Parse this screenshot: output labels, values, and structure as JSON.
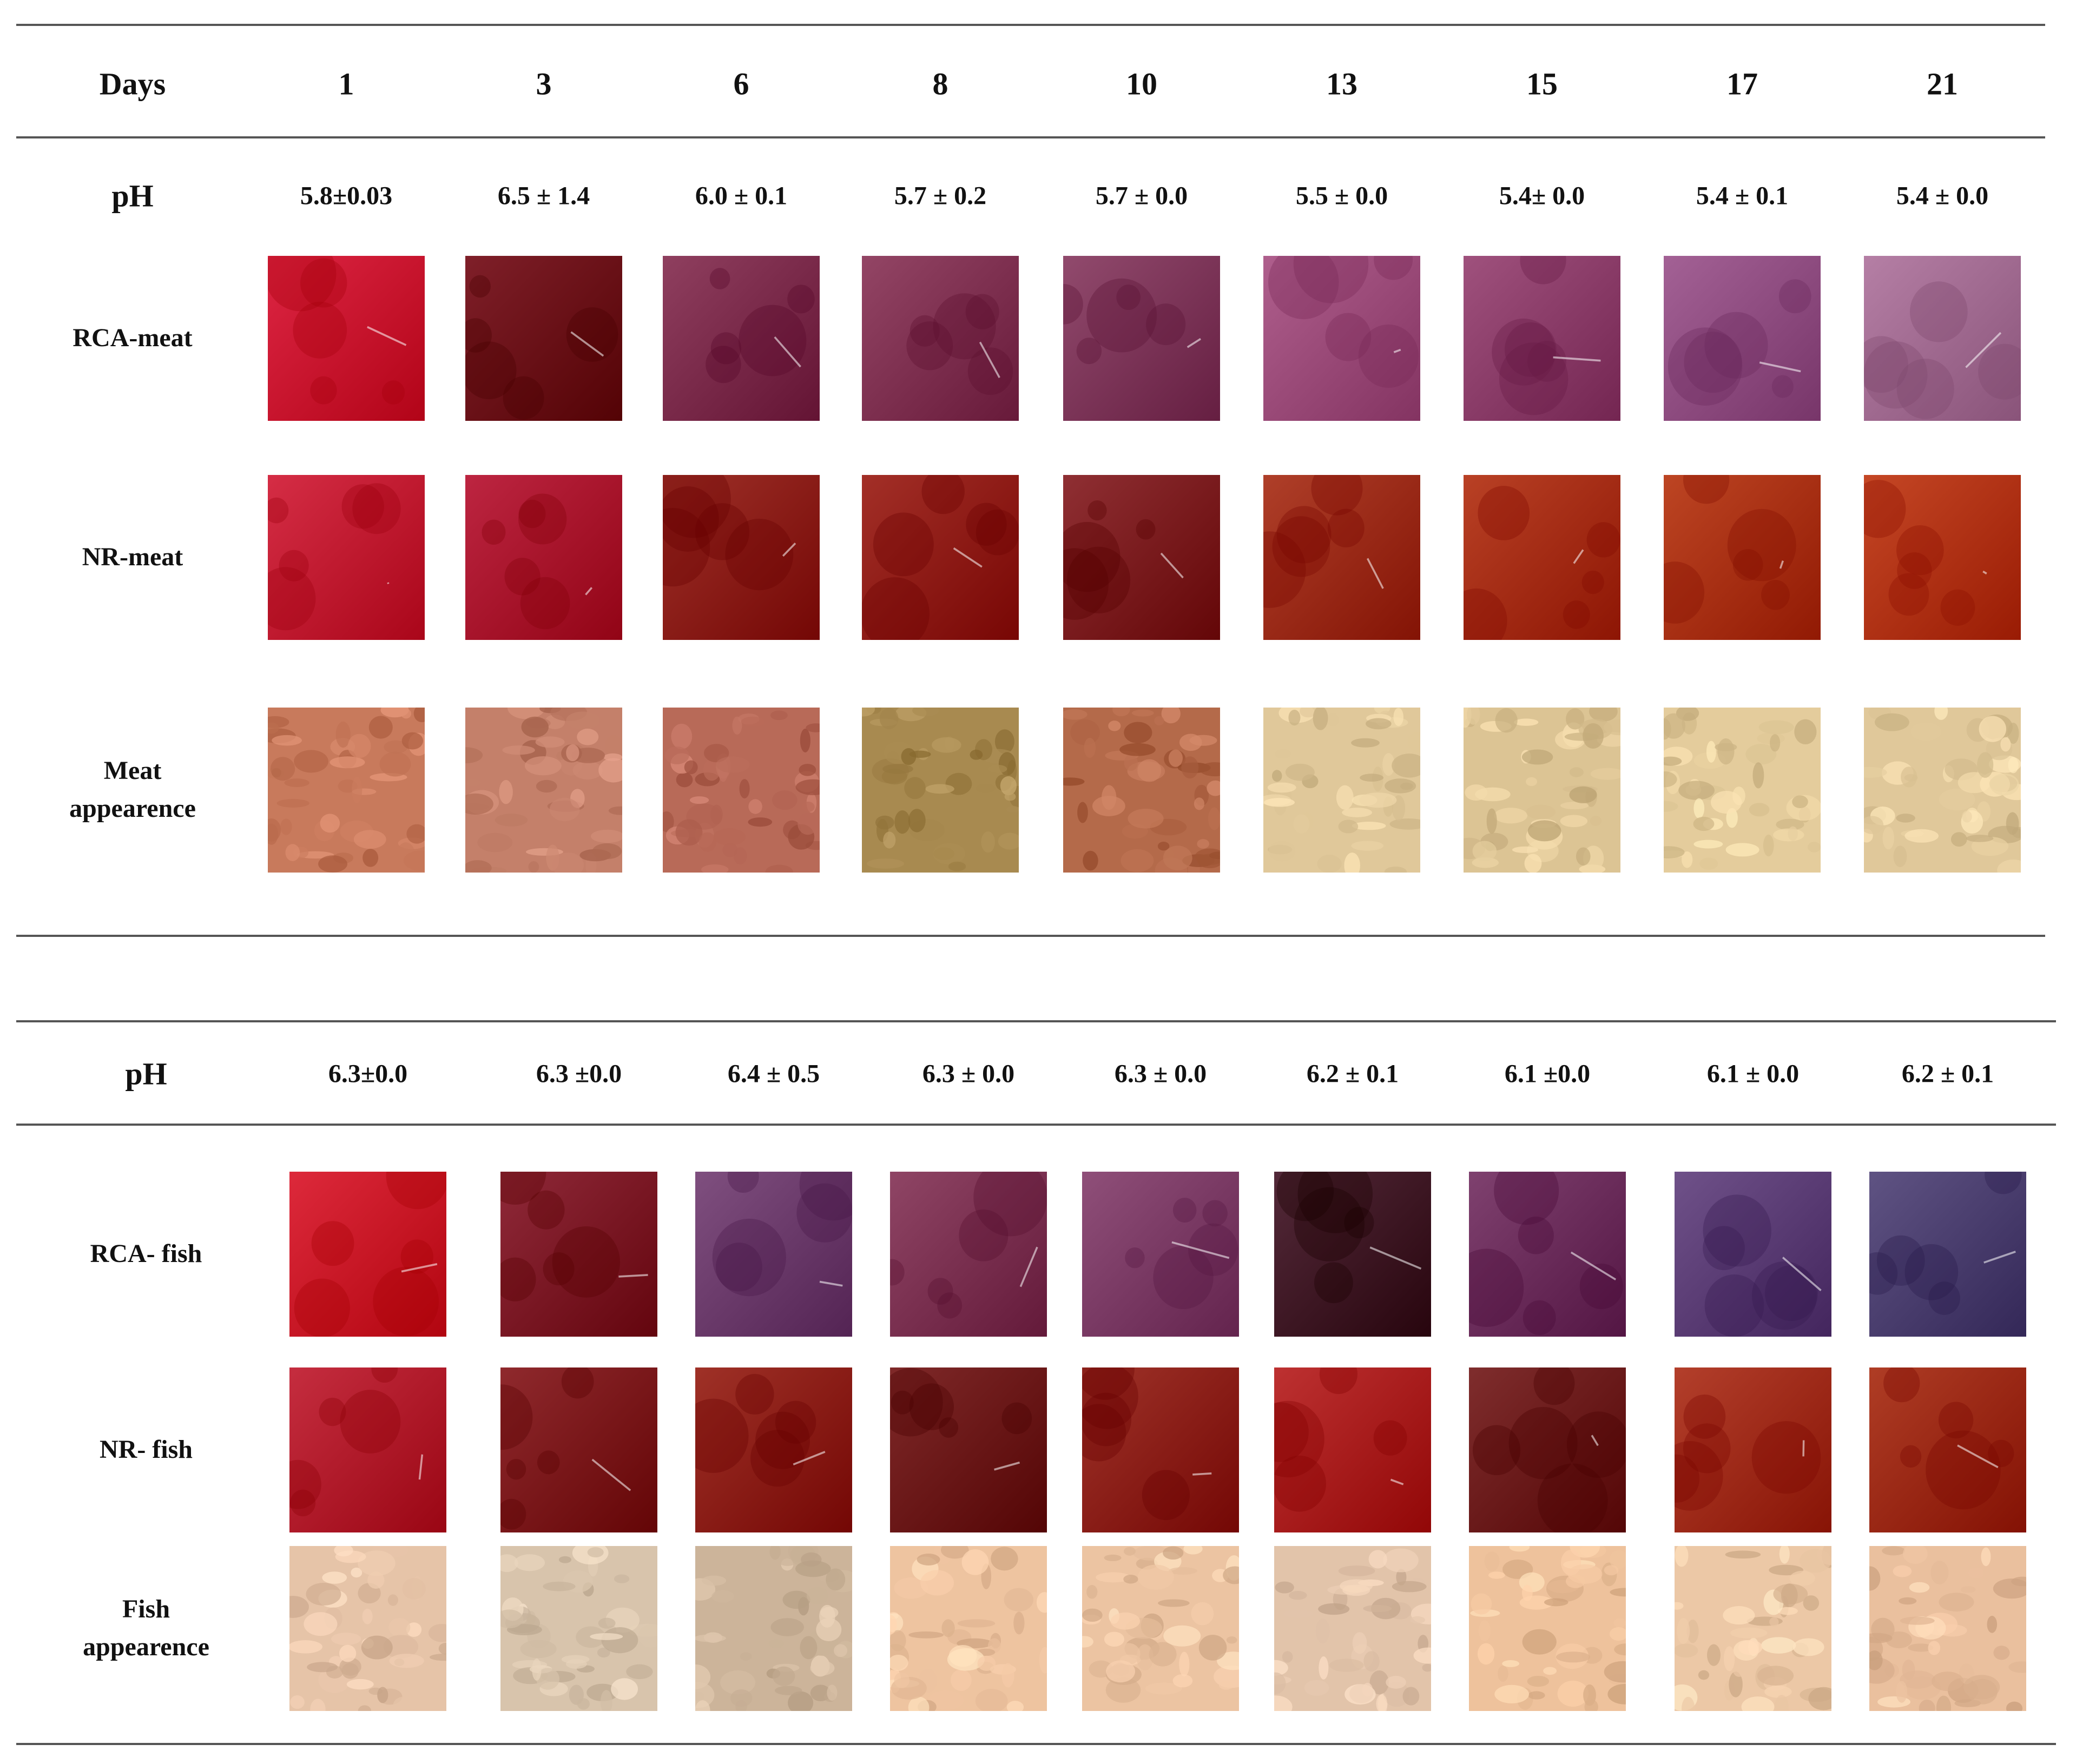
{
  "meat_table": {
    "header_label": "Days",
    "days": [
      "1",
      "3",
      "6",
      "8",
      "10",
      "13",
      "15",
      "17",
      "21"
    ],
    "ph_label": "pH",
    "ph_values": [
      "5.8±0.03",
      "6.5 ± 1.4",
      "6.0 ± 0.1",
      "5.7 ± 0.2",
      "5.7 ± 0.0",
      "5.5 ± 0.0",
      "5.4± 0.0",
      "5.4 ± 0.1",
      "5.4 ± 0.0"
    ],
    "rows": [
      {
        "label_lines": [
          "RCA-meat"
        ],
        "texture": "film",
        "colors": [
          "#c8102e",
          "#6a0a14",
          "#7a2a4a",
          "#7e3050",
          "#7c3558",
          "#9a4a78",
          "#8a3c68",
          "#8e4c80",
          "#a06a90"
        ]
      },
      {
        "label_lines": [
          "NR-meat"
        ],
        "texture": "film",
        "colors": [
          "#c01830",
          "#a8102c",
          "#8a1c14",
          "#8e1a12",
          "#7a1a1e",
          "#9a2a14",
          "#a42c10",
          "#a8300e",
          "#b03210"
        ]
      },
      {
        "label_lines": [
          "Meat",
          "appearence"
        ],
        "texture": "food",
        "colors": [
          "#c87a5c",
          "#c4806a",
          "#b86a58",
          "#a88a50",
          "#b46a4a",
          "#e0c89a",
          "#dcc494",
          "#e4cc9c",
          "#e0c89a"
        ]
      }
    ]
  },
  "fish_table": {
    "ph_label": "pH",
    "ph_values": [
      "6.3±0.0",
      "6.3 ±0.0",
      "6.4 ± 0.5",
      "6.3 ± 0.0",
      "6.3 ± 0.0",
      "6.2 ± 0.1",
      "6.1 ±0.0",
      "6.1 ± 0.0",
      "6.2 ±  0.1"
    ],
    "rows": [
      {
        "label_lines": [
          "RCA- fish"
        ],
        "texture": "film",
        "colors": [
          "#c81426",
          "#7a1424",
          "#6a3a6a",
          "#7a3050",
          "#7a3a64",
          "#3e1424",
          "#6a2c5a",
          "#5a3c74",
          "#4a3e6e"
        ]
      },
      {
        "label_lines": [
          "NR- fish"
        ],
        "texture": "film",
        "colors": [
          "#b0182a",
          "#7a1418",
          "#8a1c12",
          "#6a1414",
          "#8a1e14",
          "#a81c1c",
          "#6a1818",
          "#9e2a16",
          "#9a2810"
        ]
      },
      {
        "label_lines": [
          "Fish",
          "appearence"
        ],
        "texture": "food",
        "colors": [
          "#e6c4a8",
          "#d8c4ac",
          "#ccb49a",
          "#eec4a0",
          "#ecc4a2",
          "#e2c4aa",
          "#eec29c",
          "#ecc8a6",
          "#eac09e"
        ]
      }
    ]
  }
}
